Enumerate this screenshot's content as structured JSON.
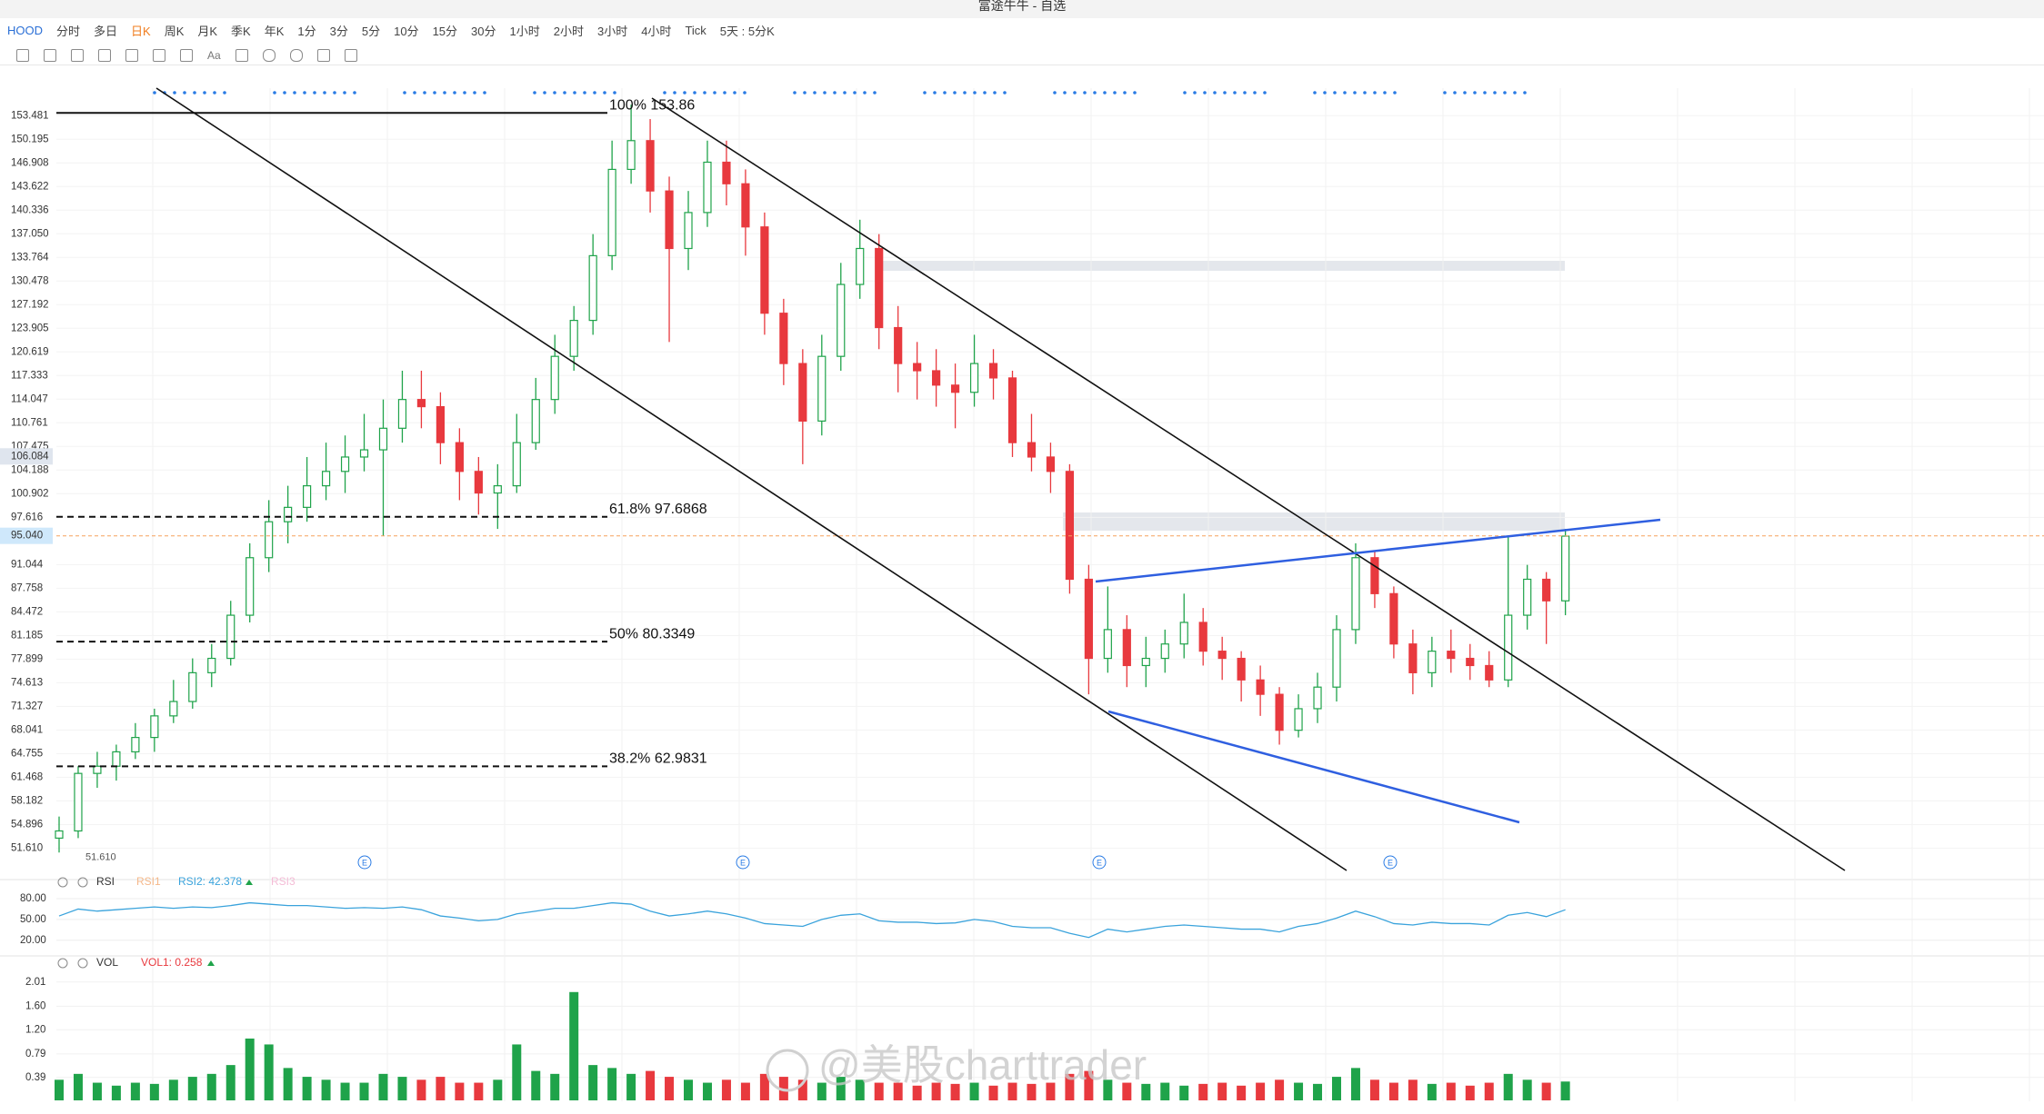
{
  "window_title": "富途牛牛 - 自选",
  "toolbar": {
    "symbol": "HOOD",
    "items": [
      "分时",
      "多日",
      "日K",
      "周K",
      "月K",
      "季K",
      "年K",
      "1分",
      "3分",
      "5分",
      "10分",
      "15分",
      "30分",
      "1小时",
      "2小时",
      "3小时",
      "4小时",
      "Tick",
      "5天 : 5分K"
    ],
    "active_index": 2,
    "text_tool": "Aa"
  },
  "watermark": "@美股charttrader",
  "chart_data": [
    {
      "type": "candlestick",
      "up_color": "#1fa34a",
      "down_color": "#e8393e",
      "open": [
        53,
        54,
        62,
        63,
        65,
        67,
        70,
        72,
        76,
        78,
        84,
        92,
        97,
        99,
        102,
        104,
        106,
        107,
        110,
        114,
        113,
        108,
        104,
        101,
        102,
        108,
        114,
        120,
        125,
        134,
        146,
        150,
        143,
        135,
        140,
        147,
        144,
        138,
        126,
        119,
        111,
        120,
        130,
        135,
        124,
        119,
        118,
        116,
        115,
        119,
        117,
        108,
        106,
        104,
        89,
        78,
        82,
        77,
        78,
        80,
        83,
        79,
        78,
        75,
        73,
        68,
        71,
        74,
        82,
        92,
        87,
        80,
        76,
        79,
        78,
        77,
        75,
        84,
        89,
        86
      ],
      "high": [
        56,
        63,
        65,
        66,
        69,
        71,
        75,
        78,
        80,
        86,
        94,
        100,
        102,
        106,
        108,
        109,
        112,
        114,
        118,
        118,
        115,
        110,
        106,
        105,
        112,
        117,
        123,
        127,
        137,
        150,
        155,
        153,
        145,
        143,
        150,
        150,
        146,
        140,
        128,
        121,
        123,
        133,
        139,
        137,
        127,
        122,
        121,
        119,
        123,
        121,
        118,
        112,
        108,
        105,
        91,
        88,
        84,
        81,
        82,
        87,
        85,
        81,
        79,
        77,
        74,
        73,
        76,
        84,
        94,
        93,
        88,
        82,
        81,
        82,
        80,
        79,
        95,
        91,
        90,
        96
      ],
      "low": [
        51,
        53,
        60,
        61,
        64,
        65,
        69,
        71,
        74,
        77,
        83,
        90,
        94,
        97,
        100,
        101,
        104,
        95,
        108,
        110,
        105,
        100,
        98,
        96,
        101,
        107,
        112,
        118,
        123,
        132,
        144,
        140,
        122,
        132,
        138,
        141,
        134,
        123,
        116,
        105,
        109,
        118,
        128,
        121,
        115,
        114,
        113,
        110,
        113,
        114,
        106,
        104,
        101,
        87,
        73,
        76,
        74,
        74,
        76,
        78,
        77,
        75,
        72,
        70,
        66,
        67,
        69,
        72,
        80,
        85,
        78,
        73,
        74,
        76,
        75,
        74,
        74,
        82,
        80,
        84
      ],
      "close": [
        54,
        62,
        63,
        65,
        67,
        70,
        72,
        76,
        78,
        84,
        92,
        97,
        99,
        102,
        104,
        106,
        107,
        110,
        114,
        113,
        108,
        104,
        101,
        102,
        108,
        114,
        120,
        125,
        134,
        146,
        150,
        143,
        135,
        140,
        147,
        144,
        138,
        126,
        119,
        111,
        120,
        130,
        135,
        124,
        119,
        118,
        116,
        115,
        119,
        117,
        108,
        106,
        104,
        89,
        78,
        82,
        77,
        78,
        80,
        83,
        79,
        78,
        75,
        73,
        68,
        71,
        74,
        82,
        92,
        87,
        80,
        76,
        79,
        78,
        77,
        75,
        84,
        89,
        86,
        95
      ],
      "ylim": [
        48.5,
        157.3
      ],
      "yticks": [
        {
          "value": 153.481,
          "label": "153.481"
        },
        {
          "value": 150.195,
          "label": "150.195"
        },
        {
          "value": 146.908,
          "label": "146.908"
        },
        {
          "value": 143.622,
          "label": "143.622"
        },
        {
          "value": 140.336,
          "label": "140.336"
        },
        {
          "value": 137.05,
          "label": "137.050"
        },
        {
          "value": 133.764,
          "label": "133.764"
        },
        {
          "value": 130.478,
          "label": "130.478"
        },
        {
          "value": 127.192,
          "label": "127.192"
        },
        {
          "value": 123.905,
          "label": "123.905"
        },
        {
          "value": 120.619,
          "label": "120.619"
        },
        {
          "value": 117.333,
          "label": "117.333"
        },
        {
          "value": 114.047,
          "label": "114.047"
        },
        {
          "value": 110.761,
          "label": "110.761"
        },
        {
          "value": 107.475,
          "label": "107.475"
        },
        {
          "value": 104.188,
          "label": "104.188"
        },
        {
          "value": 100.902,
          "label": "100.902"
        },
        {
          "value": 97.616,
          "label": "97.616"
        },
        {
          "value": 91.044,
          "label": "91.044"
        },
        {
          "value": 87.758,
          "label": "87.758"
        },
        {
          "value": 84.472,
          "label": "84.472"
        },
        {
          "value": 81.185,
          "label": "81.185"
        },
        {
          "value": 77.899,
          "label": "77.899"
        },
        {
          "value": 74.613,
          "label": "74.613"
        },
        {
          "value": 71.327,
          "label": "71.327"
        },
        {
          "value": 68.041,
          "label": "68.041"
        },
        {
          "value": 64.755,
          "label": "64.755"
        },
        {
          "value": 61.468,
          "label": "61.468"
        },
        {
          "value": 58.182,
          "label": "58.182"
        },
        {
          "value": 54.896,
          "label": "54.896"
        },
        {
          "value": 51.61,
          "label": "51.610"
        }
      ],
      "grid": true,
      "fib_levels": [
        {
          "value": 153.86,
          "label": "100% 153.86",
          "style": "solid"
        },
        {
          "value": 97.6868,
          "label": "61.8% 97.6868",
          "style": "dashed"
        },
        {
          "value": 80.3349,
          "label": "50% 80.3349",
          "style": "dashed"
        },
        {
          "value": 62.9831,
          "label": "38.2% 62.9831",
          "style": "dashed"
        }
      ],
      "price_tags": [
        {
          "value": 106.084,
          "label": "106.084",
          "color": "#dfe5ee"
        },
        {
          "value": 95.04,
          "label": "95.040",
          "color": "#cfe8fb"
        }
      ],
      "last_price_line_color": "#f5a25d",
      "low_marker": {
        "value": 51.61,
        "label": "51.610"
      },
      "event_markers": [
        "E",
        "E",
        "E",
        "E"
      ]
    },
    {
      "type": "line",
      "title": "RSI",
      "inactive_legend": [
        "RSI1",
        "RSI3"
      ],
      "series": [
        {
          "name": "RSI2: 42.378",
          "color": "#3aa3dc",
          "values": [
            55,
            65,
            62,
            64,
            66,
            68,
            66,
            68,
            67,
            70,
            74,
            72,
            70,
            70,
            68,
            66,
            67,
            66,
            68,
            64,
            55,
            52,
            48,
            50,
            58,
            62,
            66,
            66,
            70,
            74,
            72,
            62,
            55,
            58,
            62,
            58,
            52,
            44,
            42,
            40,
            50,
            56,
            58,
            48,
            46,
            46,
            44,
            45,
            50,
            47,
            40,
            38,
            38,
            30,
            24,
            36,
            32,
            36,
            40,
            42,
            40,
            38,
            36,
            36,
            32,
            40,
            44,
            52,
            62,
            54,
            44,
            42,
            46,
            44,
            44,
            42,
            56,
            60,
            54,
            64
          ]
        }
      ],
      "ylim": [
        4,
        86.5
      ],
      "yticks": [
        {
          "value": 80,
          "label": "80.00"
        },
        {
          "value": 50,
          "label": "50.00"
        },
        {
          "value": 20,
          "label": "20.00"
        }
      ]
    },
    {
      "type": "bar",
      "title": "VOL",
      "series": [
        {
          "name": "VOL1: 0.258",
          "color": "#e8393e",
          "values": [
            0.35,
            0.45,
            0.3,
            0.25,
            0.3,
            0.28,
            0.35,
            0.4,
            0.45,
            0.6,
            1.05,
            0.95,
            0.55,
            0.4,
            0.35,
            0.3,
            0.3,
            0.45,
            0.4,
            0.35,
            0.4,
            0.3,
            0.3,
            0.35,
            0.95,
            0.5,
            0.45,
            1.84,
            0.6,
            0.55,
            0.45,
            0.5,
            0.4,
            0.35,
            0.3,
            0.35,
            0.3,
            0.45,
            0.4,
            0.35,
            0.3,
            0.4,
            0.35,
            0.3,
            0.3,
            0.25,
            0.3,
            0.28,
            0.3,
            0.25,
            0.3,
            0.28,
            0.3,
            0.45,
            0.5,
            0.35,
            0.3,
            0.28,
            0.3,
            0.25,
            0.28,
            0.3,
            0.25,
            0.3,
            0.35,
            0.3,
            0.28,
            0.4,
            0.55,
            0.35,
            0.3,
            0.35,
            0.28,
            0.3,
            0.25,
            0.3,
            0.45,
            0.35,
            0.3,
            0.32
          ]
        }
      ],
      "ylim": [
        0,
        2.13
      ],
      "yticks": [
        2.01,
        {
          "value": 1.6,
          "label": "1.60"
        },
        {
          "value": 1.2,
          "label": "1.20"
        },
        0.79,
        0.39
      ]
    }
  ]
}
